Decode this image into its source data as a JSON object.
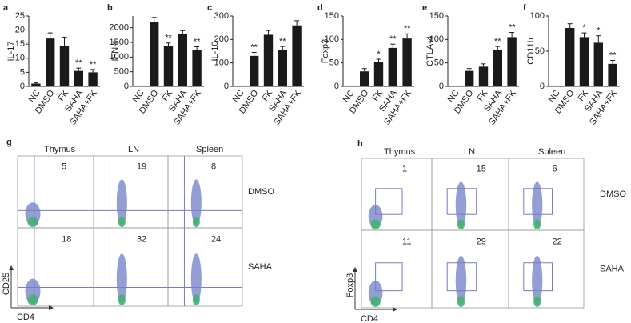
{
  "chart_data": [
    {
      "type": "bar",
      "label": "a",
      "y_label": "IL-17",
      "categories": [
        "NC",
        "DMSO",
        "FK",
        "SAHA",
        "SAHA+FK"
      ],
      "values": [
        1,
        17,
        14.5,
        5.5,
        5
      ],
      "errors": [
        0.3,
        2,
        3,
        1,
        1
      ],
      "annotations": [
        null,
        null,
        null,
        "**",
        "**"
      ],
      "color": "#1a1a1a",
      "ylim": [
        0,
        25
      ],
      "yticks": [
        0,
        5,
        10,
        15,
        20,
        25
      ]
    },
    {
      "type": "bar",
      "label": "b",
      "y_label": "IFN-r",
      "categories": [
        "NC",
        "DMSO",
        "FK",
        "SAHA",
        "SAHA+FK"
      ],
      "values": [
        0,
        2200,
        1380,
        1780,
        1230
      ],
      "errors": [
        0,
        150,
        100,
        120,
        120
      ],
      "annotations": [
        null,
        null,
        "**",
        null,
        "**"
      ],
      "color": "#1a1a1a",
      "ylim": [
        0,
        2400
      ],
      "yticks": [
        0,
        500,
        1000,
        1500,
        2000
      ]
    },
    {
      "type": "bar",
      "label": "c",
      "y_label": "IL-10",
      "categories": [
        "NC",
        "DMSO",
        "FK",
        "SAHA",
        "SAHA+FK"
      ],
      "values": [
        0,
        130,
        220,
        155,
        260
      ],
      "errors": [
        0,
        15,
        18,
        15,
        20
      ],
      "annotations": [
        null,
        "**",
        null,
        "**",
        null
      ],
      "color": "#1a1a1a",
      "ylim": [
        0,
        300
      ],
      "yticks": [
        0,
        100,
        200,
        300
      ]
    },
    {
      "type": "bar",
      "label": "d",
      "y_label": "Foxp3",
      "categories": [
        "NC",
        "DMSO",
        "FK",
        "SAHA",
        "SAHA+FK"
      ],
      "values": [
        0,
        32,
        52,
        82,
        102
      ],
      "errors": [
        0,
        6,
        6,
        8,
        10
      ],
      "annotations": [
        null,
        null,
        "*",
        "**",
        "**"
      ],
      "color": "#1a1a1a",
      "ylim": [
        0,
        150
      ],
      "yticks": [
        0,
        50,
        100,
        150
      ]
    },
    {
      "type": "bar",
      "label": "e",
      "y_label": "CTLA-4",
      "categories": [
        "NC",
        "DMSO",
        "FK",
        "SAHA",
        "SAHA+FK"
      ],
      "values": [
        0,
        33,
        42,
        77,
        105
      ],
      "errors": [
        0,
        5,
        6,
        8,
        10
      ],
      "annotations": [
        null,
        null,
        null,
        "**",
        "**"
      ],
      "color": "#1a1a1a",
      "ylim": [
        0,
        150
      ],
      "yticks": [
        0,
        50,
        100,
        150
      ]
    },
    {
      "type": "bar",
      "label": "f",
      "y_label": "CD11b",
      "categories": [
        "NC",
        "DMSO",
        "FK",
        "SAHA",
        "SAHA+FK"
      ],
      "values": [
        0,
        83,
        70,
        62,
        32
      ],
      "errors": [
        0,
        6,
        6,
        10,
        5
      ],
      "annotations": [
        null,
        null,
        "*",
        "*",
        "**"
      ],
      "color": "#1a1a1a",
      "ylim": [
        0,
        100
      ],
      "yticks": [
        0,
        50,
        100
      ]
    }
  ],
  "flow_panels": [
    {
      "label": "g",
      "columns": [
        "Thymus",
        "LN",
        "Spleen"
      ],
      "rows": [
        "DMSO",
        "SAHA"
      ],
      "percentages": [
        [
          5,
          19,
          8
        ],
        [
          18,
          32,
          24
        ]
      ],
      "x_label": "CD4",
      "y_label": "CD25"
    },
    {
      "label": "h",
      "columns": [
        "Thymus",
        "LN",
        "Spleen"
      ],
      "rows": [
        "DMSO",
        "SAHA"
      ],
      "percentages": [
        [
          1,
          15,
          6
        ],
        [
          11,
          29,
          22
        ]
      ],
      "x_label": "CD4",
      "y_label": "Foxp3"
    }
  ]
}
